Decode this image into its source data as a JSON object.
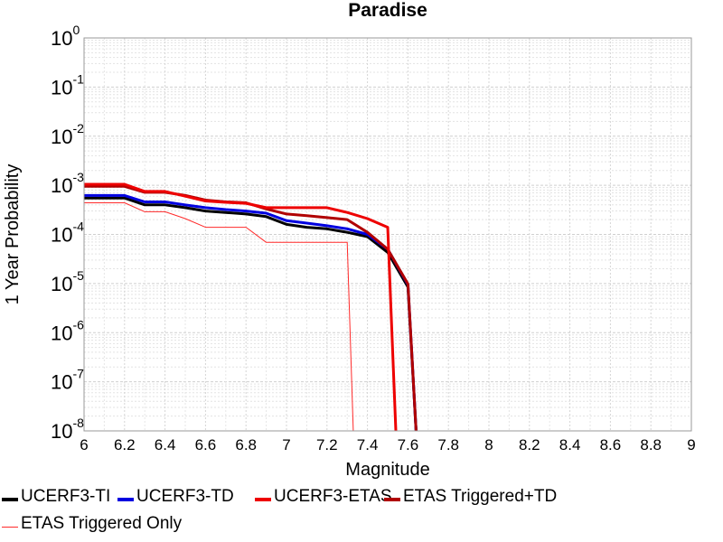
{
  "chart_data": {
    "type": "line",
    "title": "Paradise",
    "xlabel": "Magnitude",
    "ylabel": "1 Year Probability",
    "xlim": [
      6,
      9
    ],
    "ylim": [
      1e-08,
      1
    ],
    "yscale": "log",
    "grid": true,
    "legend_position": "bottom",
    "xticks": [
      "6",
      "6.2",
      "6.4",
      "6.6",
      "6.8",
      "7",
      "7.2",
      "7.4",
      "7.6",
      "7.8",
      "8",
      "8.2",
      "8.4",
      "8.6",
      "8.8",
      "9"
    ],
    "yticks": [
      {
        "base": "10",
        "exp": "0"
      },
      {
        "base": "10",
        "exp": "-1"
      },
      {
        "base": "10",
        "exp": "-2"
      },
      {
        "base": "10",
        "exp": "-3"
      },
      {
        "base": "10",
        "exp": "-4"
      },
      {
        "base": "10",
        "exp": "-5"
      },
      {
        "base": "10",
        "exp": "-6"
      },
      {
        "base": "10",
        "exp": "-7"
      },
      {
        "base": "10",
        "exp": "-8"
      }
    ],
    "series": [
      {
        "name": "UCERF3-TI",
        "color": "#000000",
        "width": 3,
        "x": [
          6.0,
          6.2,
          6.3,
          6.4,
          6.5,
          6.6,
          6.7,
          6.8,
          6.9,
          7.0,
          7.1,
          7.2,
          7.3,
          7.4,
          7.5,
          7.6,
          7.64
        ],
        "y": [
          0.00055,
          0.00055,
          0.0004,
          0.0004,
          0.00035,
          0.0003,
          0.00028,
          0.00026,
          0.00023,
          0.00016,
          0.00014,
          0.00013,
          0.00011,
          9e-05,
          4.3e-05,
          8.5e-06,
          1e-08
        ]
      },
      {
        "name": "UCERF3-TD",
        "color": "#0000e0",
        "width": 3,
        "x": [
          6.0,
          6.2,
          6.3,
          6.4,
          6.5,
          6.6,
          6.7,
          6.8,
          6.9,
          7.0,
          7.1,
          7.2,
          7.3,
          7.4,
          7.5,
          7.6,
          7.64
        ],
        "y": [
          0.00062,
          0.00062,
          0.00046,
          0.00046,
          0.0004,
          0.00035,
          0.00032,
          0.0003,
          0.00027,
          0.00019,
          0.00017,
          0.00015,
          0.00013,
          0.0001,
          5e-05,
          9.5e-06,
          1e-08
        ]
      },
      {
        "name": "UCERF3-ETAS",
        "color": "#ee0000",
        "width": 3,
        "x": [
          6.0,
          6.2,
          6.3,
          6.4,
          6.5,
          6.6,
          6.7,
          6.8,
          6.9,
          7.0,
          7.1,
          7.2,
          7.3,
          7.4,
          7.5,
          7.54
        ],
        "y": [
          0.00105,
          0.00105,
          0.00075,
          0.00075,
          0.0006,
          0.00048,
          0.00045,
          0.00043,
          0.00035,
          0.00035,
          0.00035,
          0.00035,
          0.00028,
          0.00021,
          0.00014,
          1e-08
        ]
      },
      {
        "name": "ETAS Triggered+TD",
        "color": "#b00000",
        "width": 3,
        "x": [
          6.0,
          6.2,
          6.3,
          6.4,
          6.5,
          6.6,
          6.7,
          6.8,
          6.9,
          7.0,
          7.1,
          7.2,
          7.3,
          7.4,
          7.5,
          7.6,
          7.64
        ],
        "y": [
          0.00095,
          0.00095,
          0.00072,
          0.00072,
          0.00062,
          0.0005,
          0.00046,
          0.00044,
          0.00033,
          0.00026,
          0.00024,
          0.00022,
          0.0002,
          0.00011,
          5e-05,
          9.8e-06,
          1e-08
        ]
      },
      {
        "name": "ETAS Triggered Only",
        "color": "#ff2a2a",
        "width": 1,
        "x": [
          6.0,
          6.2,
          6.3,
          6.4,
          6.5,
          6.6,
          6.7,
          6.8,
          6.9,
          7.0,
          7.1,
          7.2,
          7.3,
          7.33
        ],
        "y": [
          0.00044,
          0.00044,
          0.00029,
          0.00029,
          0.00021,
          0.00014,
          0.00014,
          0.00014,
          6.9e-05,
          6.9e-05,
          6.9e-05,
          6.9e-05,
          6.9e-05,
          1e-08
        ]
      }
    ]
  }
}
